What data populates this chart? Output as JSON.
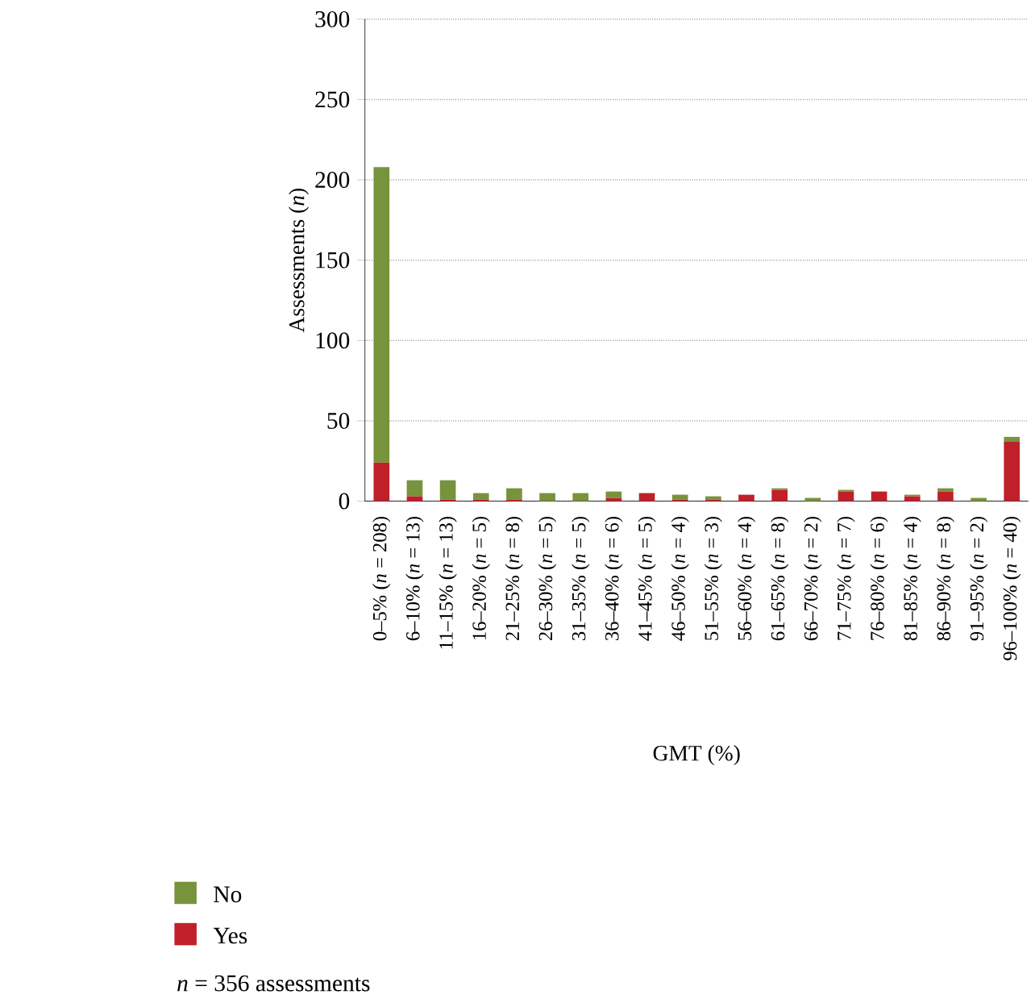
{
  "chart_data": {
    "type": "bar",
    "stacked": true,
    "xlabel": "GMT (%)",
    "ylabel": "Assessments (*n*)",
    "categories": [
      "0–5% (*n* = 208)",
      "6–10% (*n* = 13)",
      "11–15% (*n* = 13)",
      "16–20% (*n* = 5)",
      "21–25% (*n* = 8)",
      "26–30% (*n* = 5)",
      "31–35% (*n* = 5)",
      "36–40% (*n* = 6)",
      "41–45% (*n* = 5)",
      "46–50% (*n* = 4)",
      "51–55% (*n* = 3)",
      "56–60% (*n* = 4)",
      "61–65% (*n* = 8)",
      "66–70% (*n* = 2)",
      "71–75% (*n* = 7)",
      "76–80% (*n* = 6)",
      "81–85% (*n* = 4)",
      "86–90% (*n* = 8)",
      "91–95% (*n* = 2)",
      "96–100% (*n* = 40)"
    ],
    "series": [
      {
        "name": "Yes",
        "color": "#c0202a",
        "values": [
          24,
          3,
          1,
          1,
          1,
          0,
          0,
          2,
          5,
          1,
          1,
          4,
          7,
          0,
          6,
          6,
          3,
          6,
          0,
          37
        ]
      },
      {
        "name": "No",
        "color": "#77933c",
        "values": [
          184,
          10,
          12,
          4,
          7,
          5,
          5,
          4,
          0,
          3,
          2,
          0,
          1,
          2,
          1,
          0,
          1,
          2,
          2,
          3
        ]
      }
    ],
    "ylim": [
      0,
      300
    ],
    "yticks": [
      0,
      50,
      100,
      150,
      200,
      250,
      300
    ],
    "grid": "y",
    "legend": "bottom left",
    "annotations": [
      "*n* = 356 assessments"
    ]
  }
}
